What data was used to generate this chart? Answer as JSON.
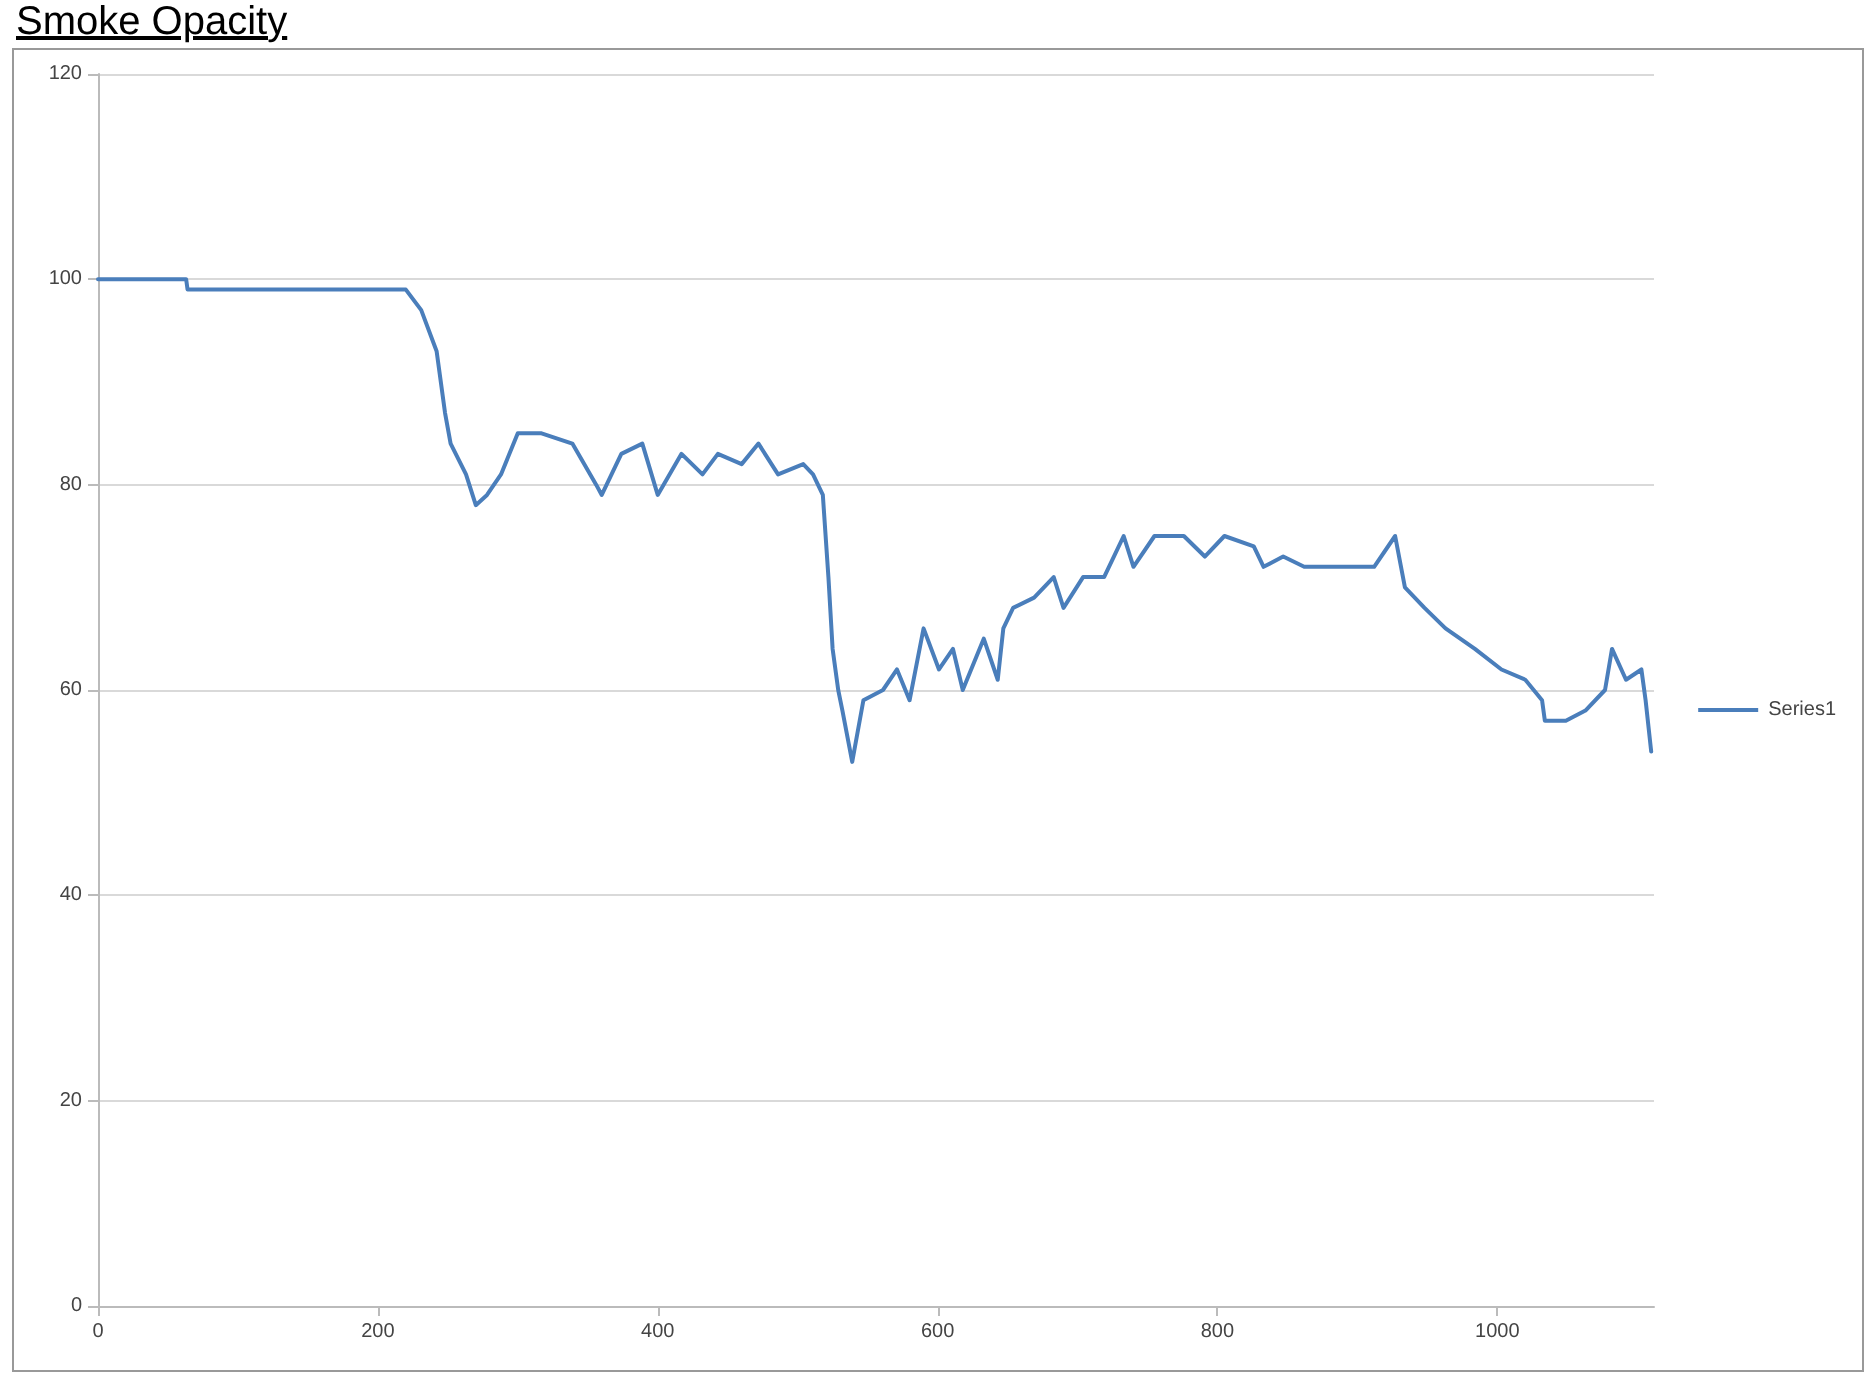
{
  "chart_data": {
    "type": "line",
    "title": "Smoke Opacity",
    "xlim": [
      0,
      1112
    ],
    "xticks": [
      0,
      200,
      400,
      600,
      800,
      1000
    ],
    "ylim": [
      0,
      120
    ],
    "yticks": [
      0,
      20,
      40,
      60,
      80,
      100,
      120
    ],
    "grid": "y",
    "legend": "right",
    "marker": "none",
    "line_style": "solid",
    "series": [
      {
        "name": "Series1",
        "color": "#4a7ebb",
        "x": [
          0,
          63,
          64,
          220,
          231,
          242,
          248,
          252,
          263,
          270,
          278,
          288,
          300,
          317,
          339,
          356,
          360,
          374,
          389,
          400,
          417,
          432,
          443,
          460,
          472,
          486,
          504,
          511,
          518,
          522,
          525,
          529,
          532,
          539,
          547,
          561,
          571,
          580,
          590,
          601,
          611,
          618,
          633,
          643,
          647,
          654,
          669,
          683,
          690,
          704,
          719,
          726,
          733,
          740,
          755,
          776,
          791,
          805,
          826,
          833,
          847,
          862,
          876,
          891,
          912,
          927,
          934,
          948,
          963,
          984,
          1003,
          1020,
          1032,
          1034,
          1049,
          1063,
          1077,
          1082,
          1092,
          1103,
          1106,
          1110
        ],
        "values": [
          100,
          100,
          99,
          99,
          97,
          93,
          87,
          84,
          81,
          78,
          79,
          81,
          85,
          85,
          84,
          80,
          79,
          83,
          84,
          79,
          83,
          81,
          83,
          82,
          84,
          81,
          82,
          81,
          79,
          71,
          64,
          60,
          58,
          53,
          59,
          60,
          62,
          59,
          66,
          62,
          64,
          60,
          65,
          61,
          66,
          68,
          69,
          71,
          68,
          71,
          71,
          73,
          75,
          72,
          75,
          75,
          73,
          75,
          74,
          72,
          73,
          72,
          72,
          72,
          72,
          75,
          70,
          68,
          66,
          64,
          62,
          61,
          59,
          57,
          57,
          58,
          60,
          64,
          61,
          62,
          59,
          54
        ]
      }
    ]
  }
}
